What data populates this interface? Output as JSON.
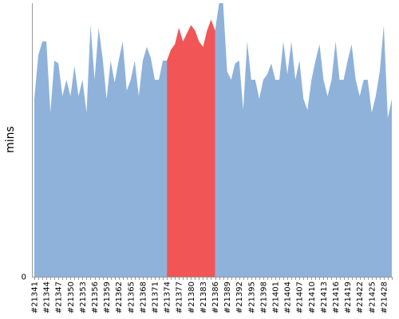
{
  "chart_data": {
    "type": "area",
    "title": "",
    "xlabel": "",
    "ylabel": "mins",
    "ylim": [
      0,
      100
    ],
    "y_tick_labels": [
      "0"
    ],
    "grid": false,
    "legend": "none",
    "x_tick_labels": [
      "#21341",
      "#21344",
      "#21347",
      "#21350",
      "#21353",
      "#21356",
      "#21359",
      "#21362",
      "#21365",
      "#21368",
      "#21371",
      "#21374",
      "#21377",
      "#21380",
      "#21383",
      "#21386",
      "#21389",
      "#21392",
      "#21395",
      "#21398",
      "#21401",
      "#21404",
      "#21407",
      "#21410",
      "#21413",
      "#21416",
      "#21419",
      "#21422",
      "#21425",
      "#21428"
    ],
    "x": [
      "#21341",
      "#21342",
      "#21343",
      "#21344",
      "#21345",
      "#21346",
      "#21347",
      "#21348",
      "#21349",
      "#21350",
      "#21351",
      "#21352",
      "#21353",
      "#21354",
      "#21355",
      "#21356",
      "#21357",
      "#21358",
      "#21359",
      "#21360",
      "#21361",
      "#21362",
      "#21363",
      "#21364",
      "#21365",
      "#21366",
      "#21367",
      "#21368",
      "#21369",
      "#21370",
      "#21371",
      "#21372",
      "#21373",
      "#21374",
      "#21375",
      "#21376",
      "#21377",
      "#21378",
      "#21379",
      "#21380",
      "#21381",
      "#21382",
      "#21383",
      "#21384",
      "#21385",
      "#21386",
      "#21387",
      "#21388",
      "#21389",
      "#21390",
      "#21391",
      "#21392",
      "#21393",
      "#21394",
      "#21395",
      "#21396",
      "#21397",
      "#21398",
      "#21399",
      "#21400",
      "#21401",
      "#21402",
      "#21403",
      "#21404",
      "#21405",
      "#21406",
      "#21407",
      "#21408",
      "#21409",
      "#21410",
      "#21411",
      "#21412",
      "#21413",
      "#21414",
      "#21415",
      "#21416",
      "#21417",
      "#21418",
      "#21419",
      "#21420",
      "#21421",
      "#21422",
      "#21423",
      "#21424",
      "#21425",
      "#21426",
      "#21427",
      "#21428",
      "#21429",
      "#21430"
    ],
    "values": [
      65,
      81,
      86,
      86,
      60,
      79,
      78,
      66,
      72,
      66,
      77,
      66,
      72,
      60,
      92,
      72,
      91,
      80,
      65,
      79,
      71,
      79,
      86,
      68,
      72,
      79,
      66,
      79,
      84,
      80,
      72,
      72,
      79,
      79,
      83,
      85,
      91,
      86,
      89,
      92,
      90,
      86,
      84,
      90,
      94,
      90,
      100,
      100,
      75,
      72,
      78,
      79,
      61,
      86,
      72,
      72,
      65,
      72,
      74,
      78,
      72,
      72,
      86,
      74,
      86,
      72,
      79,
      65,
      61,
      72,
      79,
      85,
      72,
      66,
      72,
      86,
      72,
      72,
      79,
      85,
      72,
      66,
      72,
      72,
      60,
      66,
      75,
      92,
      58,
      65
    ],
    "series": [
      {
        "name": "",
        "color": "#8fb2db",
        "range": [
          "#21341",
          "#21374"
        ]
      },
      {
        "name": "",
        "color": "#f15555",
        "range": [
          "#21374",
          "#21386"
        ]
      },
      {
        "name": "",
        "color": "#8fb2db",
        "range": [
          "#21386",
          "#21430"
        ]
      }
    ],
    "colors": {
      "normal": "#8fb2db",
      "highlight": "#f15555",
      "axis": "#999999"
    }
  }
}
